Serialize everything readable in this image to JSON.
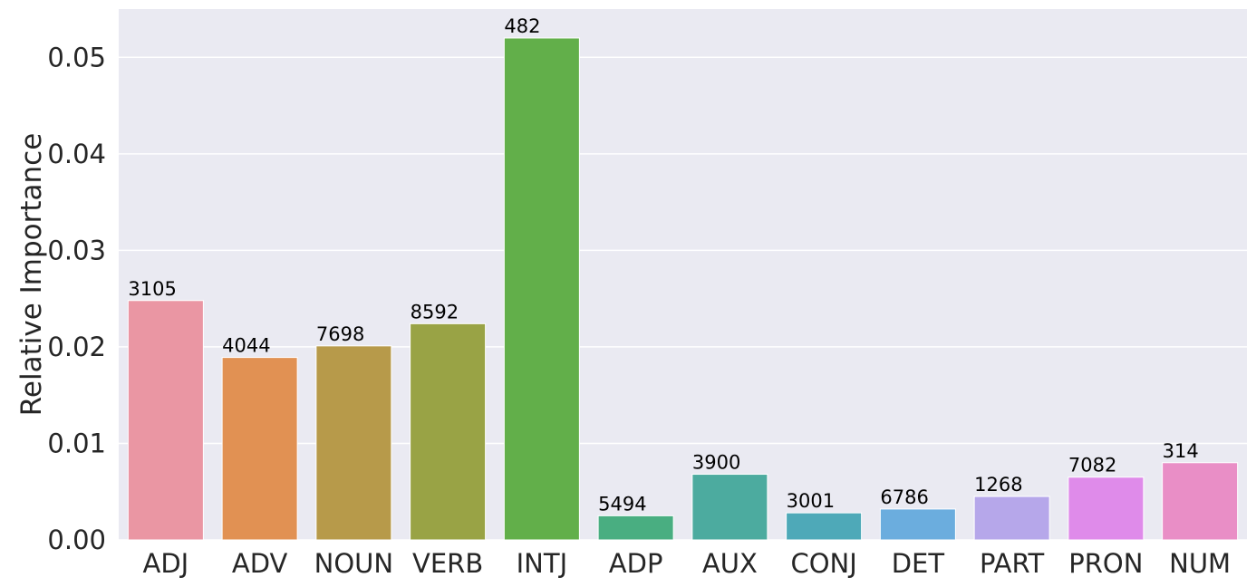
{
  "chart_data": {
    "type": "bar",
    "title": "",
    "xlabel": "",
    "ylabel": "Relative Importance",
    "ylim": [
      0,
      0.055
    ],
    "yticks": [
      "0.00",
      "0.01",
      "0.02",
      "0.03",
      "0.04",
      "0.05"
    ],
    "grid": true,
    "categories": [
      "ADJ",
      "ADV",
      "NOUN",
      "VERB",
      "INTJ",
      "ADP",
      "AUX",
      "CONJ",
      "DET",
      "PART",
      "PRON",
      "NUM"
    ],
    "values": [
      0.0248,
      0.0189,
      0.0201,
      0.0224,
      0.052,
      0.0025,
      0.0068,
      0.0028,
      0.0032,
      0.0045,
      0.0065,
      0.008
    ],
    "bar_labels": [
      "3105",
      "4044",
      "7698",
      "8592",
      "482",
      "5494",
      "3900",
      "3001",
      "6786",
      "1268",
      "7082",
      "314"
    ],
    "colors": [
      "#ea96a3",
      "#e19153",
      "#b79a4a",
      "#99a345",
      "#62af4a",
      "#49ae81",
      "#4cab9f",
      "#4ea9b8",
      "#6badde",
      "#b6a7ea",
      "#df8bea",
      "#e98ec6"
    ],
    "background_color": "#eaeaf2"
  }
}
